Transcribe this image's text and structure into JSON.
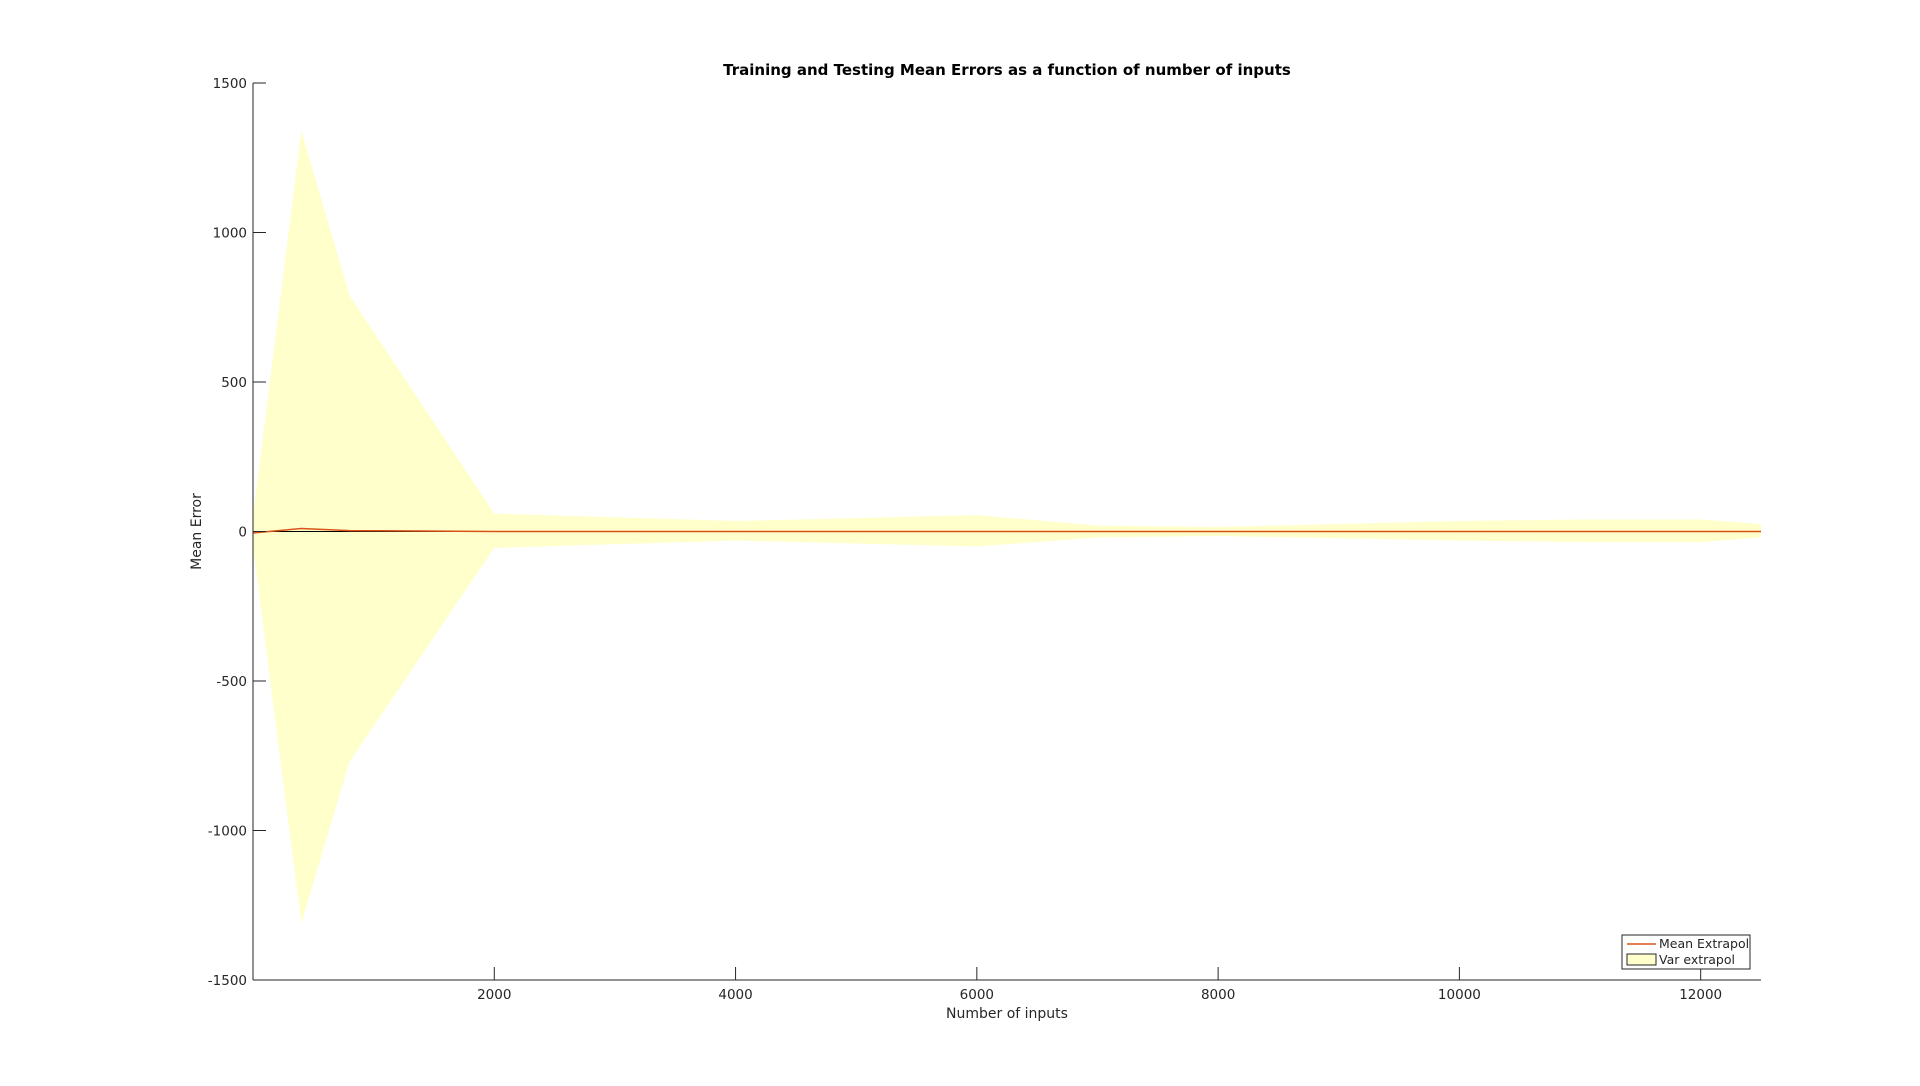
{
  "colors": {
    "band_fill": "#ffffcc",
    "mean_line": "#d95319",
    "zero_line": "#000000",
    "axis": "#262626",
    "text": "#262626"
  },
  "chart_data": {
    "type": "area",
    "title": "Training and Testing Mean Errors as a function of number of inputs",
    "xlabel": "Number of inputs",
    "ylabel": "Mean Error",
    "xlim": [
      0,
      12500
    ],
    "ylim": [
      -1500,
      1500
    ],
    "xticks": [
      2000,
      4000,
      6000,
      8000,
      10000,
      12000
    ],
    "yticks": [
      -1500,
      -1000,
      -500,
      0,
      500,
      1000,
      1500
    ],
    "grid": false,
    "legend_placement": "bottom-right",
    "series": [
      {
        "name": "Mean Extrapol",
        "kind": "line",
        "x": [
          0,
          400,
          800,
          2000,
          4000,
          6000,
          8000,
          10000,
          12000,
          12500
        ],
        "y": [
          -5,
          10,
          3,
          0,
          0,
          0,
          0,
          0,
          0,
          0
        ]
      },
      {
        "name": "Var extrapol",
        "kind": "band",
        "x": [
          0,
          400,
          800,
          2000,
          4000,
          6000,
          7000,
          8000,
          10000,
          11000,
          12000,
          12500
        ],
        "upper": [
          50,
          1340,
          790,
          60,
          35,
          55,
          20,
          15,
          35,
          40,
          40,
          25
        ],
        "lower": [
          -50,
          -1310,
          -770,
          -55,
          -30,
          -50,
          -20,
          -15,
          -30,
          -35,
          -35,
          -20
        ]
      }
    ]
  }
}
